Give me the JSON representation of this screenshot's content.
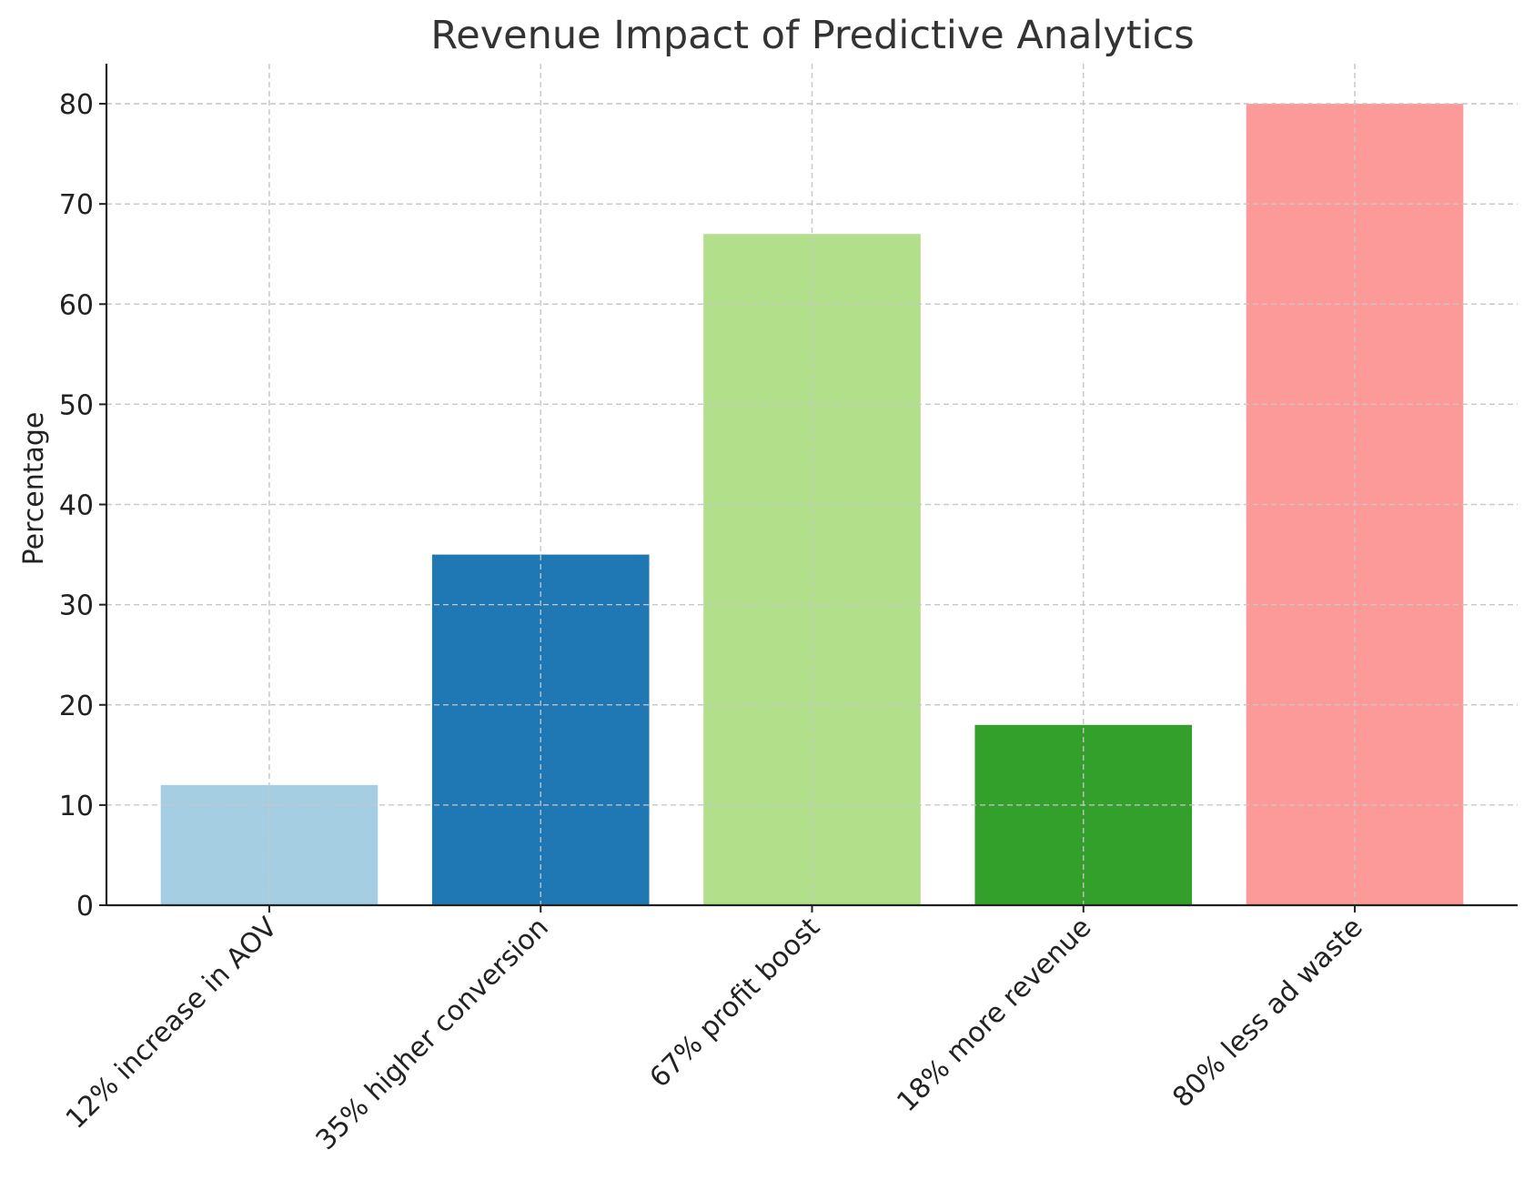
{
  "chart_data": {
    "type": "bar",
    "title": "Revenue Impact of Predictive Analytics",
    "xlabel": "",
    "ylabel": "Percentage",
    "categories": [
      "12% increase in AOV",
      "35% higher conversion",
      "67% profit boost",
      "18% more revenue",
      "80% less ad waste"
    ],
    "values": [
      12,
      35,
      67,
      18,
      80
    ],
    "colors": [
      "#a6cee3",
      "#1f78b4",
      "#b2df8a",
      "#33a02c",
      "#fb9a99"
    ],
    "ylim": [
      0,
      84
    ],
    "yticks": [
      0,
      10,
      20,
      30,
      40,
      50,
      60,
      70,
      80
    ],
    "grid": true,
    "legend": "none"
  }
}
